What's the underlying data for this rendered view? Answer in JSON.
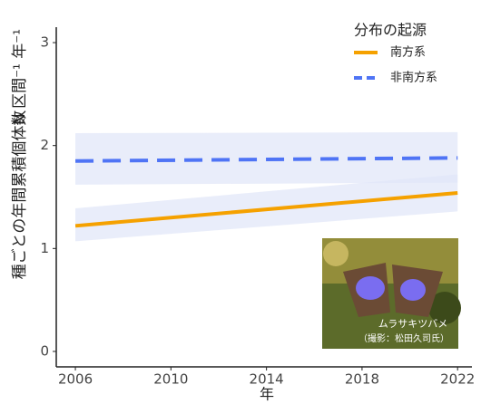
{
  "chart_data": {
    "type": "line",
    "ylabel": "種ごとの年間累積個体数",
    "ylabel_unit": "N 区間⁻¹ 年⁻¹",
    "xlabel": "年",
    "legend_title": "分布の起源",
    "x": [
      2006,
      2022
    ],
    "xlim": [
      2005.2,
      2022.6
    ],
    "xticks": [
      2006,
      2010,
      2014,
      2018,
      2022
    ],
    "ylim": [
      -0.15,
      3.15
    ],
    "yticks": [
      0,
      1,
      2,
      3
    ],
    "series": [
      {
        "name": "南方系",
        "color": "#f5a100",
        "dash": false,
        "values": [
          1.22,
          1.54
        ],
        "lower": [
          1.07,
          1.36
        ],
        "upper": [
          1.39,
          1.72
        ]
      },
      {
        "name": "非南方系",
        "color": "#4f74f5",
        "dash": true,
        "values": [
          1.85,
          1.88
        ],
        "lower": [
          1.62,
          1.64
        ],
        "upper": [
          2.12,
          2.13
        ]
      }
    ],
    "photo_caption": "ムラサキツバメ",
    "photo_credit": "（撮影：松田久司氏）"
  }
}
